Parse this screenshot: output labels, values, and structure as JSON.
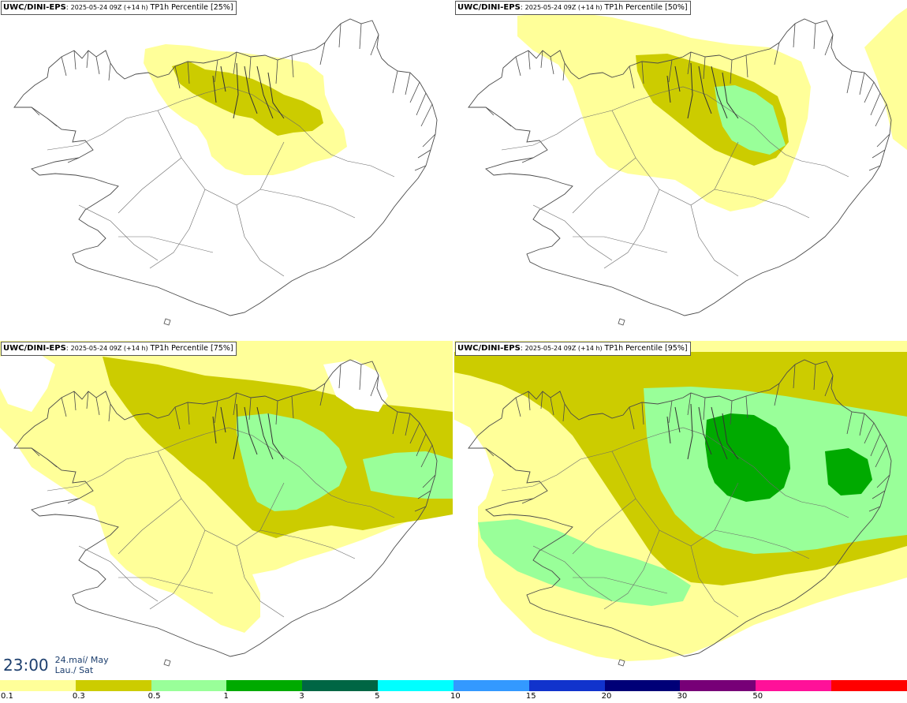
{
  "panels": [
    {
      "model": "UWC/DINI-EPS",
      "run": "2025-05-24 09Z (+14 h)",
      "field": "TP1h Percentile [25%]"
    },
    {
      "model": "UWC/DINI-EPS",
      "run": "2025-05-24 09Z (+14 h)",
      "field": "TP1h Percentile [50%]"
    },
    {
      "model": "UWC/DINI-EPS",
      "run": "2025-05-24 09Z (+14 h)",
      "field": "TP1h Percentile [75%]"
    },
    {
      "model": "UWC/DINI-EPS",
      "run": "2025-05-24 09Z (+14 h)",
      "field": "TP1h Percentile [95%]"
    }
  ],
  "valid_time": {
    "hour": "23:00",
    "date_line": "24.maí/ May",
    "day_line": "Lau./ Sat"
  },
  "legend": {
    "colors": [
      "#ffff99",
      "#cccc00",
      "#99ff99",
      "#00aa00",
      "#006644",
      "#00ffff",
      "#3399ff",
      "#1133cc",
      "#000077",
      "#770077",
      "#ff1199",
      "#ff0000"
    ],
    "labels": [
      "0.1",
      "0.3",
      "0.5",
      "1",
      "3",
      "5",
      "10",
      "15",
      "20",
      "30",
      "50"
    ]
  }
}
